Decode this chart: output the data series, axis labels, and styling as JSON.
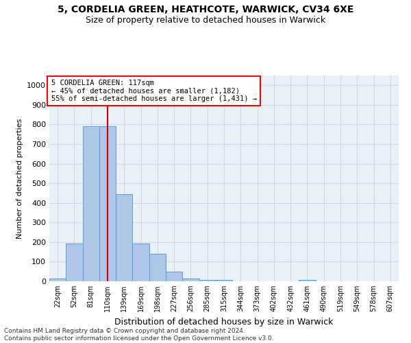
{
  "title1": "5, CORDELIA GREEN, HEATHCOTE, WARWICK, CV34 6XE",
  "title2": "Size of property relative to detached houses in Warwick",
  "xlabel": "Distribution of detached houses by size in Warwick",
  "ylabel": "Number of detached properties",
  "footnote": "Contains HM Land Registry data © Crown copyright and database right 2024.\nContains public sector information licensed under the Open Government Licence v3.0.",
  "bin_labels": [
    "22sqm",
    "52sqm",
    "81sqm",
    "110sqm",
    "139sqm",
    "169sqm",
    "198sqm",
    "227sqm",
    "256sqm",
    "285sqm",
    "315sqm",
    "344sqm",
    "373sqm",
    "402sqm",
    "432sqm",
    "461sqm",
    "490sqm",
    "519sqm",
    "549sqm",
    "578sqm",
    "607sqm"
  ],
  "bar_heights": [
    15,
    193,
    790,
    790,
    443,
    193,
    140,
    50,
    13,
    8,
    8,
    0,
    0,
    0,
    0,
    8,
    0,
    0,
    0,
    0,
    0
  ],
  "bar_color": "#aec6e8",
  "bar_edge_color": "#5b9bd5",
  "grid_color": "#d0d8e8",
  "background_color": "#eaf0f8",
  "property_label": "5 CORDELIA GREEN: 117sqm",
  "annotation_line1": "← 45% of detached houses are smaller (1,182)",
  "annotation_line2": "55% of semi-detached houses are larger (1,431) →",
  "vline_color": "#cc0000",
  "vline_x": 3.0,
  "ylim": [
    0,
    1050
  ],
  "yticks": [
    0,
    100,
    200,
    300,
    400,
    500,
    600,
    700,
    800,
    900,
    1000
  ]
}
